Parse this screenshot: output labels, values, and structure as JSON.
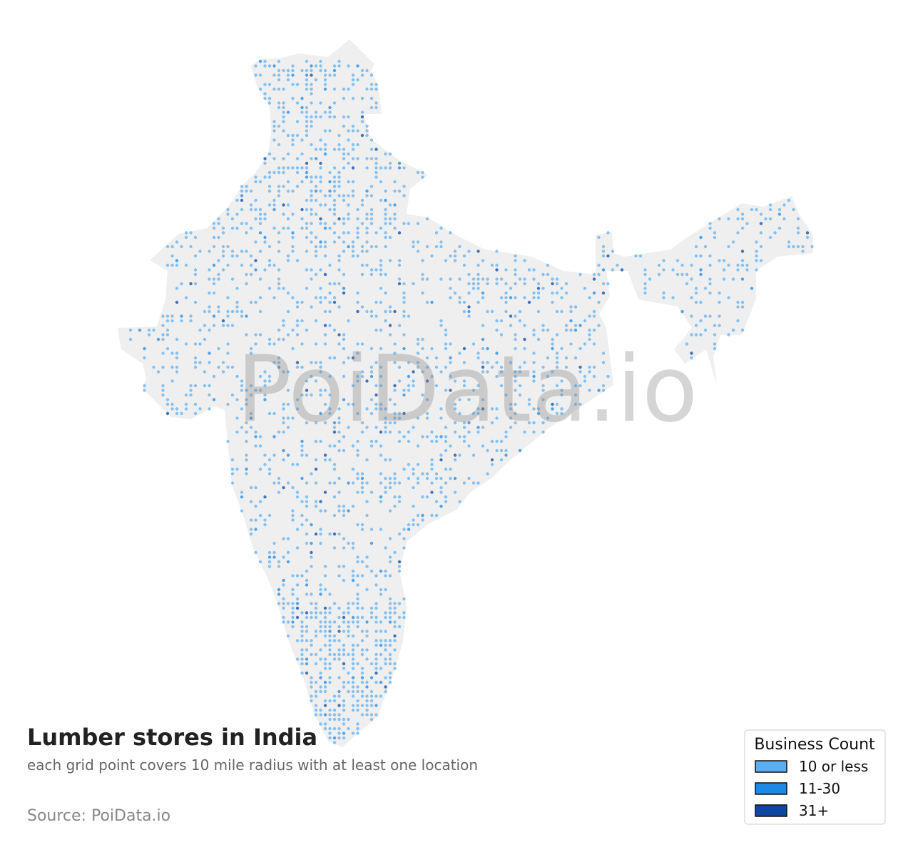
{
  "title": "Lumber stores in India",
  "subtitle": "each grid point covers 10 mile radius with at least one location",
  "source": "Source: PoiData.io",
  "watermark": "PoiData.io",
  "legend": {
    "title": "Business Count",
    "items": [
      {
        "label": "10 or less",
        "color": "#5aaef0"
      },
      {
        "label": "11-30",
        "color": "#1e88e5"
      },
      {
        "label": "31+",
        "color": "#0d47a1"
      }
    ]
  }
}
